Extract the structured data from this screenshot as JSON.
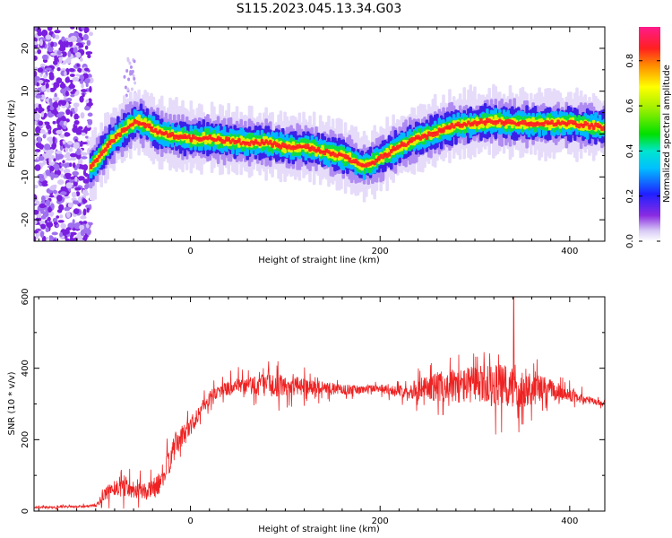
{
  "title": "S115.2023.045.13.34.G03",
  "chart_data": [
    {
      "type": "heatmap",
      "xlabel": "Height of straight line (km)",
      "ylabel": "Frequency (Hz)",
      "xlim": [
        -165,
        437
      ],
      "ylim": [
        -25,
        25
      ],
      "xticks": [
        0,
        200,
        400
      ],
      "yticks": [
        -20,
        -10,
        0,
        10,
        20
      ],
      "grid": false,
      "colorbar": {
        "label": "Normalized spectral amplitude",
        "range": [
          0.0,
          0.95
        ],
        "ticks": [
          0.0,
          0.2,
          0.4,
          0.6,
          0.8
        ],
        "colormap": "rainbow (white-purple-blue-cyan-green-yellow-red-magenta)"
      },
      "ridge": {
        "name": "Doppler frequency track",
        "x": [
          -105,
          -95,
          -85,
          -75,
          -65,
          -55,
          -45,
          -35,
          -25,
          -15,
          0,
          20,
          40,
          60,
          80,
          100,
          120,
          140,
          160,
          170,
          180,
          190,
          200,
          220,
          240,
          260,
          280,
          300,
          320,
          340,
          360,
          380,
          400,
          420,
          437
        ],
        "y": [
          -8,
          -5,
          -2,
          0,
          2,
          3,
          2,
          0.5,
          0,
          -0.5,
          -1,
          -1,
          -1.5,
          -2,
          -2,
          -3,
          -3,
          -4,
          -5,
          -6,
          -7.5,
          -7,
          -5.5,
          -3,
          -1,
          0.5,
          2,
          2.5,
          3,
          2.5,
          2.5,
          2.5,
          2.5,
          2,
          1.5
        ],
        "note_region": "x < -110 km: scattered noise spanning full frequency range"
      }
    },
    {
      "type": "line",
      "xlabel": "Height of straight line (km)",
      "ylabel": "SNR (10 * v/v)",
      "xlim": [
        -165,
        437
      ],
      "ylim": [
        0,
        600
      ],
      "xticks": [
        0,
        200,
        400
      ],
      "yticks": [
        0,
        200,
        400,
        600
      ],
      "grid": false,
      "series": [
        {
          "color": "#ee2222",
          "x": [
            -165,
            -140,
            -120,
            -100,
            -85,
            -75,
            -65,
            -55,
            -45,
            -35,
            -25,
            -15,
            -5,
            5,
            15,
            25,
            40,
            60,
            80,
            100,
            120,
            140,
            160,
            180,
            200,
            220,
            240,
            260,
            280,
            300,
            320,
            340,
            360,
            380,
            400,
            420,
            437
          ],
          "y": [
            10,
            12,
            12,
            15,
            60,
            70,
            65,
            60,
            55,
            70,
            120,
            190,
            220,
            260,
            300,
            330,
            345,
            350,
            355,
            350,
            350,
            345,
            340,
            340,
            345,
            335,
            340,
            350,
            350,
            355,
            350,
            345,
            345,
            340,
            325,
            310,
            300
          ],
          "noise_amplitude": [
            4,
            5,
            5,
            8,
            40,
            50,
            45,
            40,
            40,
            50,
            60,
            60,
            50,
            40,
            35,
            30,
            35,
            45,
            55,
            50,
            40,
            30,
            25,
            20,
            20,
            25,
            50,
            70,
            80,
            90,
            100,
            110,
            80,
            50,
            30,
            20,
            10
          ],
          "peak": {
            "x": 341,
            "y": 600
          }
        }
      ]
    }
  ]
}
